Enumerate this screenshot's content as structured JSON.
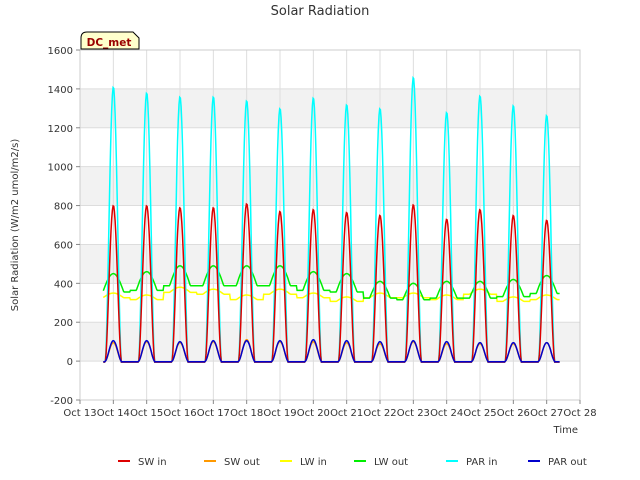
{
  "chart_data": {
    "type": "line",
    "title": "Solar Radiation",
    "xlabel": "Time",
    "ylabel": "Solar Radiation (W/m2 umol/m2/s)",
    "badge": "DC_met",
    "xlim": [
      13,
      28
    ],
    "ylim": [
      -200,
      1600
    ],
    "yticks": [
      -200,
      0,
      200,
      400,
      600,
      800,
      1000,
      1200,
      1400,
      1600
    ],
    "xticks": [
      "Oct 13",
      "Oct 14",
      "Oct 15",
      "Oct 16",
      "Oct 17",
      "Oct 18",
      "Oct 19",
      "Oct 20",
      "Oct 21",
      "Oct 22",
      "Oct 23",
      "Oct 24",
      "Oct 25",
      "Oct 26",
      "Oct 27",
      "Oct 28"
    ],
    "grid": true,
    "legend_position": "bottom",
    "series": [
      {
        "name": "SW in",
        "color": "#dd0000",
        "peaks": [
          800,
          800,
          790,
          790,
          810,
          770,
          780,
          765,
          750,
          805,
          730,
          780,
          750,
          725
        ]
      },
      {
        "name": "SW out",
        "color": "#ff9900",
        "peaks": [
          95,
          100,
          95,
          100,
          110,
          100,
          100,
          95,
          90,
          100,
          90,
          90,
          90,
          95
        ]
      },
      {
        "name": "LW in",
        "color": "#ffff00",
        "day_values": [
          350,
          340,
          380,
          370,
          340,
          370,
          350,
          330,
          350,
          350,
          340,
          370,
          330,
          340
        ]
      },
      {
        "name": "LW out",
        "color": "#00ee00",
        "day_values": [
          450,
          460,
          490,
          490,
          490,
          490,
          460,
          450,
          410,
          400,
          410,
          410,
          420,
          440
        ]
      },
      {
        "name": "PAR in",
        "color": "#00ffff",
        "peaks": [
          1410,
          1380,
          1360,
          1360,
          1340,
          1300,
          1355,
          1320,
          1300,
          1460,
          1280,
          1365,
          1315,
          1265
        ]
      },
      {
        "name": "PAR out",
        "color": "#0000cc",
        "peaks": [
          105,
          105,
          100,
          105,
          105,
          105,
          110,
          105,
          100,
          105,
          100,
          95,
          95,
          95
        ]
      }
    ]
  }
}
